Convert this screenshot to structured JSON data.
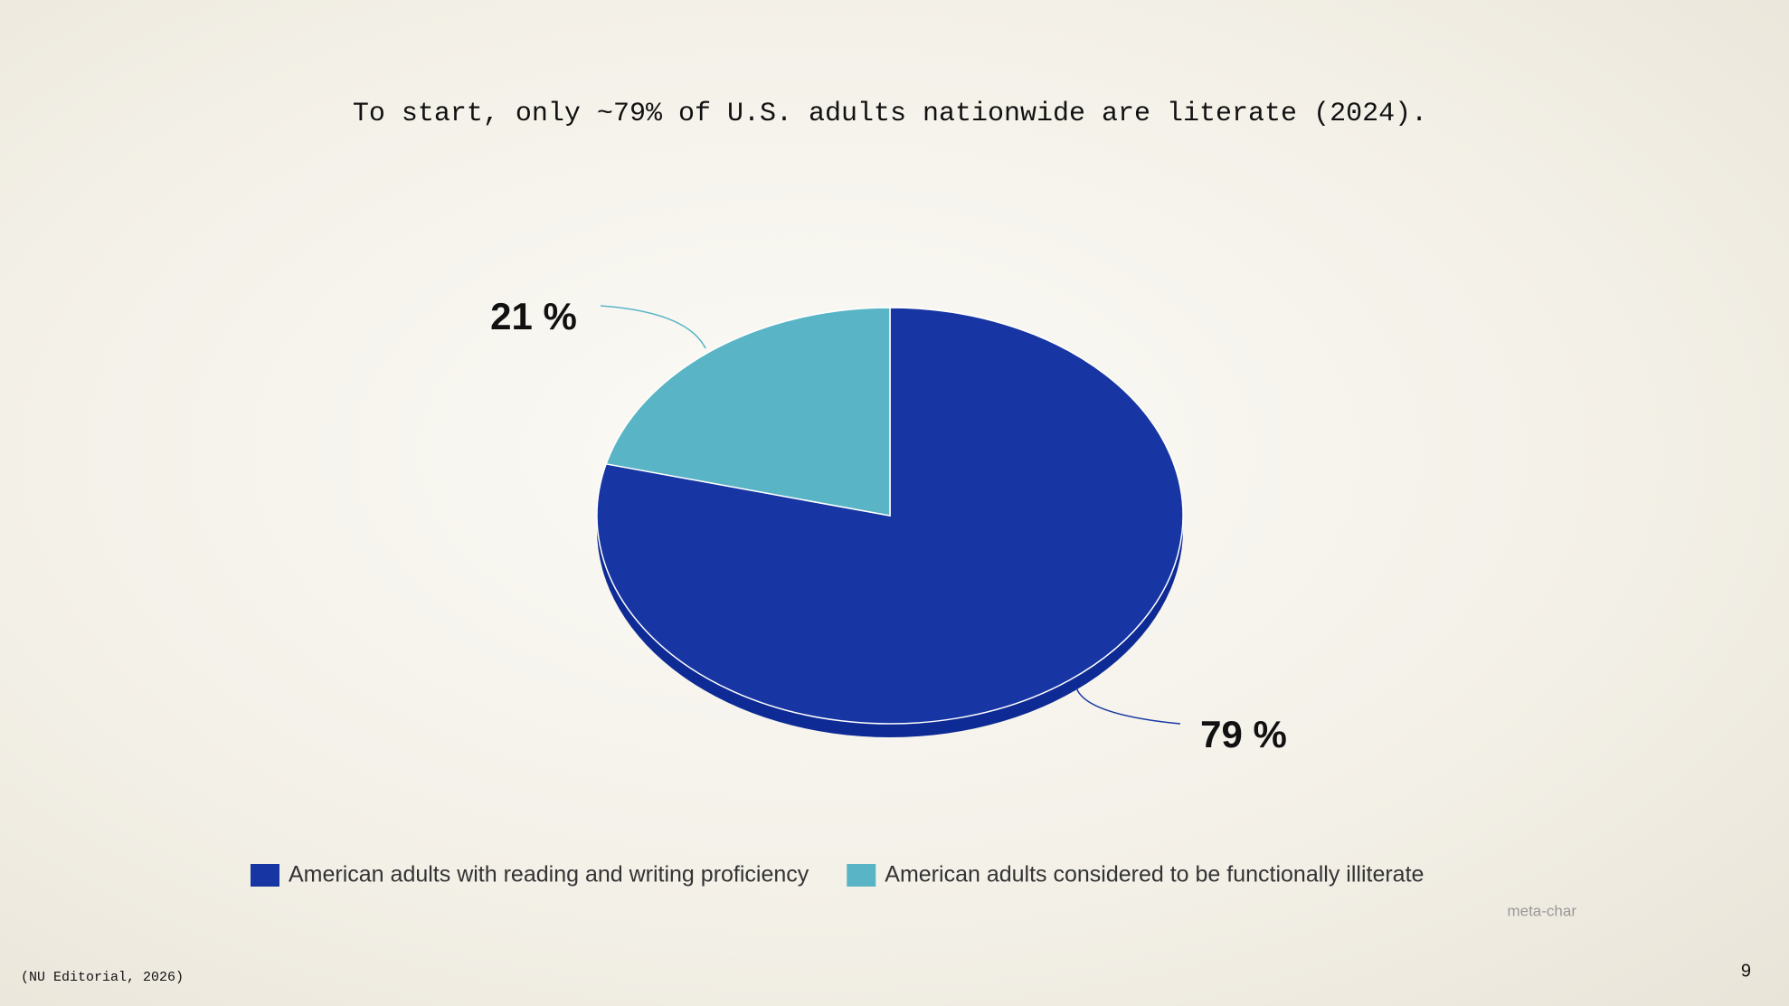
{
  "chart_data": {
    "type": "pie",
    "title": "To start, only ~79% of U.S. adults nationwide are literate (2024).",
    "categories": [
      "American adults with reading and writing proficiency",
      "American adults considered to be functionally illiterate"
    ],
    "values": [
      79,
      21
    ],
    "value_labels": [
      "79 %",
      "21 %"
    ],
    "colors": [
      "#1736a3",
      "#59b4c6"
    ],
    "credit": "meta-char"
  },
  "footnote": "(NU Editorial, 2026)",
  "page_number": 9
}
